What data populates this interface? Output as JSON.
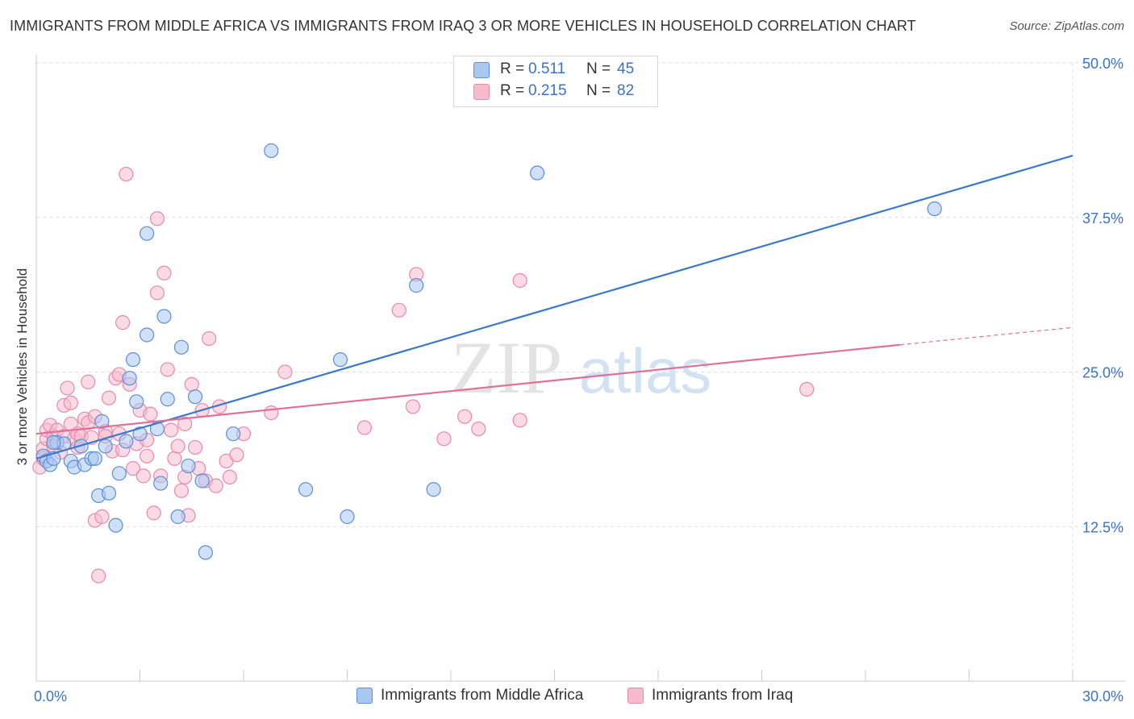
{
  "title": "IMMIGRANTS FROM MIDDLE AFRICA VS IMMIGRANTS FROM IRAQ 3 OR MORE VEHICLES IN HOUSEHOLD CORRELATION CHART",
  "source": "Source: ZipAtlas.com",
  "watermark": {
    "zip": "ZIP",
    "atlas": "atlas"
  },
  "legend": {
    "rows": [
      {
        "r_label": "R =",
        "r_value": "0.511",
        "n_label": "N =",
        "n_value": "45"
      },
      {
        "r_label": "R =",
        "r_value": "0.215",
        "n_label": "N =",
        "n_value": "82"
      }
    ]
  },
  "bottom_legend": [
    "Immigrants from Middle Africa",
    "Immigrants from Iraq"
  ],
  "colors": {
    "blue_fill": "#a9c8f0",
    "blue_stroke": "#5b8fd6",
    "blue_line": "#3a78cc",
    "pink_fill": "#f6bccd",
    "pink_stroke": "#e88aaa",
    "pink_line": "#e0709a",
    "tick_label": "#3b73c4",
    "grid": "#dddddd"
  },
  "chart_data": {
    "type": "scatter",
    "title": "IMMIGRANTS FROM MIDDLE AFRICA VS IMMIGRANTS FROM IRAQ 3 OR MORE VEHICLES IN HOUSEHOLD CORRELATION CHART",
    "xlabel": "",
    "ylabel": "3 or more Vehicles in Household",
    "xlim": [
      0,
      30
    ],
    "ylim": [
      0,
      50
    ],
    "x_tick_labels": [
      "0.0%",
      "30.0%"
    ],
    "y_ticks": [
      12.5,
      25.0,
      37.5,
      50.0
    ],
    "y_tick_labels": [
      "12.5%",
      "25.0%",
      "37.5%",
      "50.0%"
    ],
    "grid": true,
    "legend_position": "top-center",
    "series": [
      {
        "name": "Immigrants from Middle Africa",
        "r": 0.511,
        "n": 45,
        "trend": {
          "x0": 0,
          "y0": 18.0,
          "x1": 30,
          "y1": 42.5
        },
        "points": [
          [
            0.2,
            18.2
          ],
          [
            0.3,
            17.8
          ],
          [
            0.4,
            17.5
          ],
          [
            0.5,
            18.0
          ],
          [
            0.6,
            19.3
          ],
          [
            0.8,
            19.2
          ],
          [
            1.0,
            17.8
          ],
          [
            1.1,
            17.3
          ],
          [
            1.3,
            19.0
          ],
          [
            1.4,
            17.5
          ],
          [
            1.6,
            18.0
          ],
          [
            1.7,
            18.0
          ],
          [
            1.8,
            15.0
          ],
          [
            1.9,
            21.0
          ],
          [
            2.0,
            19.0
          ],
          [
            2.1,
            15.2
          ],
          [
            2.3,
            12.6
          ],
          [
            2.4,
            16.8
          ],
          [
            2.6,
            19.4
          ],
          [
            2.7,
            24.5
          ],
          [
            2.8,
            26.0
          ],
          [
            2.9,
            22.6
          ],
          [
            3.0,
            20.0
          ],
          [
            3.2,
            36.2
          ],
          [
            3.2,
            28.0
          ],
          [
            3.5,
            20.4
          ],
          [
            3.6,
            16.0
          ],
          [
            3.7,
            29.5
          ],
          [
            3.8,
            22.8
          ],
          [
            4.1,
            13.3
          ],
          [
            4.2,
            27.0
          ],
          [
            4.4,
            17.4
          ],
          [
            4.6,
            23.0
          ],
          [
            4.8,
            16.2
          ],
          [
            4.9,
            10.4
          ],
          [
            5.7,
            20.0
          ],
          [
            6.8,
            42.9
          ],
          [
            7.8,
            15.5
          ],
          [
            8.8,
            26.0
          ],
          [
            9.0,
            13.3
          ],
          [
            11.0,
            32.0
          ],
          [
            11.5,
            15.5
          ],
          [
            14.5,
            41.1
          ],
          [
            26.0,
            38.2
          ],
          [
            0.5,
            19.3
          ]
        ]
      },
      {
        "name": "Immigrants from Iraq",
        "r": 0.215,
        "n": 82,
        "trend": {
          "x0": 0,
          "y0": 20.0,
          "x1": 25,
          "y1": 27.2
        },
        "trend_dashed": {
          "x0": 25,
          "y0": 27.2,
          "x1": 30,
          "y1": 28.6
        },
        "points": [
          [
            0.1,
            17.3
          ],
          [
            0.2,
            18.8
          ],
          [
            0.3,
            19.6
          ],
          [
            0.3,
            20.3
          ],
          [
            0.4,
            20.7
          ],
          [
            0.5,
            19.8
          ],
          [
            0.6,
            20.3
          ],
          [
            0.7,
            18.5
          ],
          [
            0.8,
            22.3
          ],
          [
            0.8,
            19.8
          ],
          [
            0.9,
            23.7
          ],
          [
            1.0,
            22.5
          ],
          [
            1.0,
            20.8
          ],
          [
            1.1,
            19.6
          ],
          [
            1.2,
            20.0
          ],
          [
            1.3,
            19.8
          ],
          [
            1.4,
            21.2
          ],
          [
            1.5,
            24.2
          ],
          [
            1.5,
            20.9
          ],
          [
            1.6,
            19.7
          ],
          [
            1.7,
            21.4
          ],
          [
            1.7,
            13.0
          ],
          [
            1.8,
            8.5
          ],
          [
            1.9,
            13.3
          ],
          [
            2.0,
            20.2
          ],
          [
            2.0,
            19.8
          ],
          [
            2.1,
            22.9
          ],
          [
            2.2,
            18.6
          ],
          [
            2.3,
            24.5
          ],
          [
            2.4,
            24.8
          ],
          [
            2.5,
            18.7
          ],
          [
            2.5,
            29.0
          ],
          [
            2.6,
            41.0
          ],
          [
            2.7,
            24.0
          ],
          [
            2.8,
            17.2
          ],
          [
            2.9,
            19.2
          ],
          [
            3.0,
            21.9
          ],
          [
            3.1,
            16.6
          ],
          [
            3.2,
            18.2
          ],
          [
            3.3,
            21.6
          ],
          [
            3.4,
            13.6
          ],
          [
            3.5,
            37.4
          ],
          [
            3.5,
            31.4
          ],
          [
            3.6,
            16.6
          ],
          [
            3.7,
            33.0
          ],
          [
            3.8,
            25.2
          ],
          [
            3.9,
            20.3
          ],
          [
            4.0,
            18.0
          ],
          [
            4.1,
            19.0
          ],
          [
            4.2,
            15.4
          ],
          [
            4.3,
            16.5
          ],
          [
            4.4,
            13.4
          ],
          [
            4.5,
            24.0
          ],
          [
            4.6,
            18.9
          ],
          [
            4.7,
            17.2
          ],
          [
            4.8,
            21.9
          ],
          [
            4.9,
            16.2
          ],
          [
            5.0,
            27.7
          ],
          [
            5.2,
            15.8
          ],
          [
            5.3,
            22.2
          ],
          [
            5.5,
            17.8
          ],
          [
            5.6,
            16.5
          ],
          [
            5.8,
            18.3
          ],
          [
            6.0,
            20.0
          ],
          [
            6.8,
            21.7
          ],
          [
            7.2,
            25.0
          ],
          [
            9.5,
            20.5
          ],
          [
            10.5,
            30.0
          ],
          [
            10.9,
            22.2
          ],
          [
            11.0,
            32.9
          ],
          [
            11.8,
            19.6
          ],
          [
            12.4,
            21.4
          ],
          [
            12.8,
            20.4
          ],
          [
            14.0,
            21.1
          ],
          [
            14.0,
            32.4
          ],
          [
            22.3,
            23.6
          ],
          [
            0.2,
            18.0
          ],
          [
            0.5,
            19.0
          ],
          [
            1.2,
            18.9
          ],
          [
            2.4,
            20.0
          ],
          [
            3.2,
            19.5
          ],
          [
            4.3,
            20.8
          ]
        ]
      }
    ]
  }
}
